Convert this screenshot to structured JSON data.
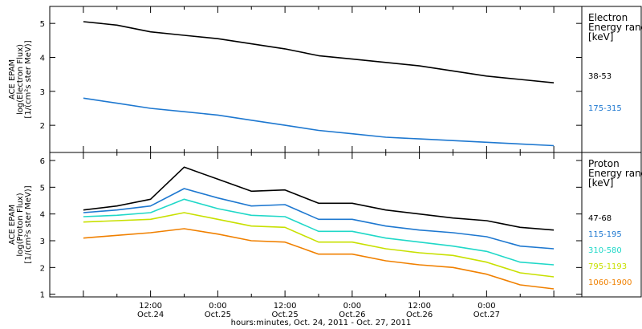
{
  "x_axis_title": "hours:minutes, Oct. 24, 2011 - Oct. 27, 2011",
  "chart_data": [
    {
      "type": "line",
      "panel": "electron",
      "ylabel_lines": [
        "ACE EPAM",
        "log(Electron Flux)",
        "[1/(cm²s ster MeV)]"
      ],
      "ylim": [
        1.2,
        5.5
      ],
      "yticks": [
        2,
        3,
        4,
        5
      ],
      "x": [
        0,
        6,
        12,
        18,
        24,
        30,
        36,
        42,
        48,
        54,
        60,
        66,
        72,
        78,
        84
      ],
      "legend_title": [
        "Electron",
        "Energy range",
        "[keV]"
      ],
      "series": [
        {
          "name": "38-53",
          "color": "#000000",
          "values": [
            5.05,
            4.95,
            4.75,
            4.65,
            4.55,
            4.4,
            4.25,
            4.05,
            3.95,
            3.85,
            3.75,
            3.6,
            3.45,
            3.35,
            3.25
          ]
        },
        {
          "name": "175-315",
          "color": "#1e78d0",
          "values": [
            2.8,
            2.65,
            2.5,
            2.4,
            2.3,
            2.15,
            2.0,
            1.85,
            1.75,
            1.65,
            1.6,
            1.55,
            1.5,
            1.45,
            1.4
          ]
        }
      ]
    },
    {
      "type": "line",
      "panel": "proton",
      "ylabel_lines": [
        "ACE EPAM",
        "log(Proton Flux)",
        "[1/(cm²s ster MeV)]"
      ],
      "ylim": [
        0.9,
        6.3
      ],
      "yticks": [
        1,
        2,
        3,
        4,
        5,
        6
      ],
      "x": [
        0,
        6,
        12,
        18,
        24,
        30,
        36,
        42,
        48,
        54,
        60,
        66,
        72,
        78,
        84
      ],
      "xtick_labels": [
        {
          "x": 12,
          "time": "12:00",
          "date": "Oct.24"
        },
        {
          "x": 24,
          "time": "0:00",
          "date": "Oct.25"
        },
        {
          "x": 36,
          "time": "12:00",
          "date": "Oct.25"
        },
        {
          "x": 48,
          "time": "0:00",
          "date": "Oct.26"
        },
        {
          "x": 60,
          "time": "12:00",
          "date": "Oct.26"
        },
        {
          "x": 72,
          "time": "0:00",
          "date": "Oct.27"
        }
      ],
      "legend_title": [
        "Proton",
        "Energy range",
        "[keV]"
      ],
      "series": [
        {
          "name": "47-68",
          "color": "#000000",
          "values": [
            4.15,
            4.3,
            4.55,
            5.75,
            5.3,
            4.85,
            4.9,
            4.4,
            4.4,
            4.15,
            4.0,
            3.85,
            3.75,
            3.5,
            3.4
          ]
        },
        {
          "name": "115-195",
          "color": "#1e78d0",
          "values": [
            4.05,
            4.15,
            4.3,
            4.95,
            4.6,
            4.3,
            4.35,
            3.8,
            3.8,
            3.55,
            3.4,
            3.3,
            3.15,
            2.8,
            2.7
          ]
        },
        {
          "name": "310-580",
          "color": "#20d8c8",
          "values": [
            3.9,
            3.95,
            4.05,
            4.55,
            4.2,
            3.95,
            3.9,
            3.35,
            3.35,
            3.1,
            2.95,
            2.8,
            2.6,
            2.2,
            2.1
          ]
        },
        {
          "name": "795-1193",
          "color": "#c8e000",
          "values": [
            3.7,
            3.75,
            3.8,
            4.05,
            3.8,
            3.55,
            3.5,
            2.95,
            2.95,
            2.7,
            2.55,
            2.45,
            2.2,
            1.8,
            1.65
          ]
        },
        {
          "name": "1060-1900",
          "color": "#f08000",
          "values": [
            3.1,
            3.2,
            3.3,
            3.45,
            3.25,
            3.0,
            2.95,
            2.5,
            2.5,
            2.25,
            2.1,
            2.0,
            1.75,
            1.35,
            1.2
          ]
        }
      ]
    }
  ]
}
